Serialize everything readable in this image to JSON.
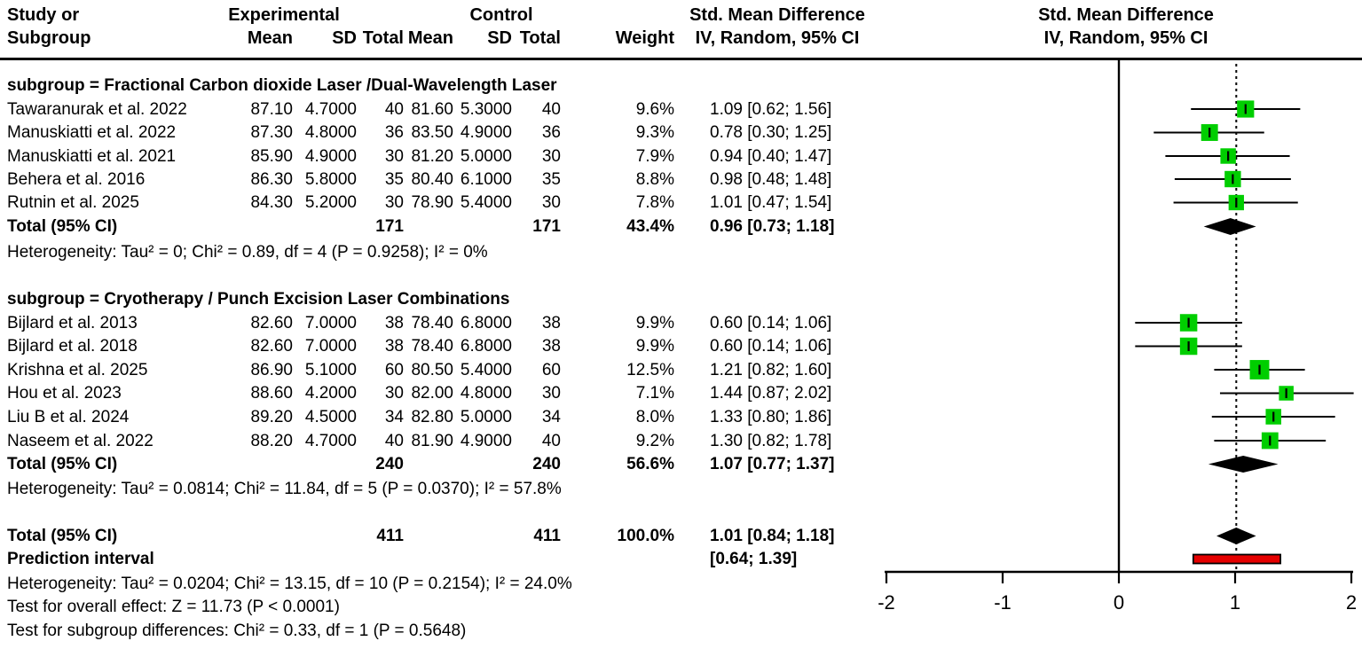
{
  "header": {
    "col_study_line1": "Study or",
    "col_study_line2": "Subgroup",
    "group_experimental": "Experimental",
    "group_control": "Control",
    "col_exp_mean": "Mean",
    "col_exp_sd": "SD",
    "col_exp_total": "Total",
    "col_ctl_mean": "Mean",
    "col_ctl_sd": "SD",
    "col_ctl_total": "Total",
    "col_weight": "Weight",
    "smd_col_line1": "Std. Mean Difference",
    "smd_col_line2": "IV, Random, 95% CI",
    "plot_col_line1": "Std. Mean Difference",
    "plot_col_line2": "IV, Random, 95% CI"
  },
  "table": {
    "rows": [
      {
        "kind": "subgroup",
        "text": "subgroup = Fractional Carbon dioxide Laser /Dual-Wavelength Laser"
      },
      {
        "kind": "study",
        "study": "Tawaranurak et al. 2022",
        "em": "87.10",
        "esd": "4.7000",
        "et": "40",
        "cm": "81.60",
        "csd": "5.3000",
        "ct": "40",
        "w": "9.6%",
        "smd": "1.09 [0.62; 1.56]"
      },
      {
        "kind": "study",
        "study": "Manuskiatti et al. 2022",
        "em": "87.30",
        "esd": "4.8000",
        "et": "36",
        "cm": "83.50",
        "csd": "4.9000",
        "ct": "36",
        "w": "9.3%",
        "smd": "0.78 [0.30; 1.25]"
      },
      {
        "kind": "study",
        "study": "Manuskiatti et al. 2021",
        "em": "85.90",
        "esd": "4.9000",
        "et": "30",
        "cm": "81.20",
        "csd": "5.0000",
        "ct": "30",
        "w": "7.9%",
        "smd": "0.94 [0.40; 1.47]"
      },
      {
        "kind": "study",
        "study": "Behera et al. 2016",
        "em": "86.30",
        "esd": "5.8000",
        "et": "35",
        "cm": "80.40",
        "csd": "6.1000",
        "ct": "35",
        "w": "8.8%",
        "smd": "0.98 [0.48; 1.48]"
      },
      {
        "kind": "study",
        "study": "Rutnin et al. 2025",
        "em": "84.30",
        "esd": "5.2000",
        "et": "30",
        "cm": "78.90",
        "csd": "5.4000",
        "ct": "30",
        "w": "7.8%",
        "smd": "1.01 [0.47; 1.54]"
      },
      {
        "kind": "total",
        "study": "Total (95% CI)",
        "et": "171",
        "ct": "171",
        "w": "43.4%",
        "smd": "0.96 [0.73; 1.18]"
      },
      {
        "kind": "note",
        "text": "Heterogeneity: Tau² = 0; Chi² = 0.89, df = 4 (P = 0.9258); I² = 0%"
      },
      {
        "kind": "subgroup",
        "text": "subgroup = Cryotherapy / Punch Excision Laser Combinations"
      },
      {
        "kind": "study",
        "study": "Bijlard et al. 2013",
        "em": "82.60",
        "esd": "7.0000",
        "et": "38",
        "cm": "78.40",
        "csd": "6.8000",
        "ct": "38",
        "w": "9.9%",
        "smd": "0.60 [0.14; 1.06]"
      },
      {
        "kind": "study",
        "study": "Bijlard et al. 2018",
        "em": "82.60",
        "esd": "7.0000",
        "et": "38",
        "cm": "78.40",
        "csd": "6.8000",
        "ct": "38",
        "w": "9.9%",
        "smd": "0.60 [0.14; 1.06]"
      },
      {
        "kind": "study",
        "study": "Krishna et al. 2025",
        "em": "86.90",
        "esd": "5.1000",
        "et": "60",
        "cm": "80.50",
        "csd": "5.4000",
        "ct": "60",
        "w": "12.5%",
        "smd": "1.21 [0.82; 1.60]"
      },
      {
        "kind": "study",
        "study": "Hou et al. 2023",
        "em": "88.60",
        "esd": "4.2000",
        "et": "30",
        "cm": "82.00",
        "csd": "4.8000",
        "ct": "30",
        "w": "7.1%",
        "smd": "1.44 [0.87; 2.02]"
      },
      {
        "kind": "study",
        "study": "Liu B et al. 2024",
        "em": "89.20",
        "esd": "4.5000",
        "et": "34",
        "cm": "82.80",
        "csd": "5.0000",
        "ct": "34",
        "w": "8.0%",
        "smd": "1.33 [0.80; 1.86]"
      },
      {
        "kind": "study",
        "study": "Naseem et al. 2022",
        "em": "88.20",
        "esd": "4.7000",
        "et": "40",
        "cm": "81.90",
        "csd": "4.9000",
        "ct": "40",
        "w": "9.2%",
        "smd": "1.30 [0.82; 1.78]"
      },
      {
        "kind": "total",
        "study": "Total (95% CI)",
        "et": "240",
        "ct": "240",
        "w": "56.6%",
        "smd": "1.07 [0.77; 1.37]"
      },
      {
        "kind": "note",
        "text": "Heterogeneity: Tau² = 0.0814; Chi² = 11.84, df = 5 (P = 0.0370); I² = 57.8%"
      },
      {
        "kind": "total",
        "study": "Total (95% CI)",
        "et": "411",
        "ct": "411",
        "w": "100.0%",
        "smd": "1.01 [0.84; 1.18]"
      },
      {
        "kind": "total",
        "study": "Prediction interval",
        "et": "",
        "ct": "",
        "w": "",
        "smd": "[0.64; 1.39]"
      },
      {
        "kind": "note",
        "text": "Heterogeneity: Tau² = 0.0204; Chi² = 13.15, df = 10 (P = 0.2154); I² = 24.0%"
      },
      {
        "kind": "note",
        "text": "Test for overall effect: Z = 11.73 (P < 0.0001)"
      },
      {
        "kind": "note",
        "text": "Test for subgroup differences: Chi² = 0.33, df = 1 (P = 0.5648)"
      }
    ]
  },
  "chart_data": {
    "type": "forest",
    "effect_measure": "Std. Mean Difference",
    "model": "IV, Random, 95% CI",
    "xlim": [
      -2,
      2
    ],
    "x_ticks": [
      -2,
      -1,
      0,
      1,
      2
    ],
    "null_line": 0,
    "groups": [
      {
        "label": "subgroup = Fractional Carbon dioxide Laser /Dual-Wavelength Laser",
        "studies": [
          {
            "study": "Tawaranurak et al. 2022",
            "smd": 1.09,
            "ci": [
              0.62,
              1.56
            ],
            "weight_pct": 9.6
          },
          {
            "study": "Manuskiatti et al. 2022",
            "smd": 0.78,
            "ci": [
              0.3,
              1.25
            ],
            "weight_pct": 9.3
          },
          {
            "study": "Manuskiatti et al. 2021",
            "smd": 0.94,
            "ci": [
              0.4,
              1.47
            ],
            "weight_pct": 7.9
          },
          {
            "study": "Behera et al. 2016",
            "smd": 0.98,
            "ci": [
              0.48,
              1.48
            ],
            "weight_pct": 8.8
          },
          {
            "study": "Rutnin et al. 2025",
            "smd": 1.01,
            "ci": [
              0.47,
              1.54
            ],
            "weight_pct": 7.8
          }
        ],
        "subtotal": {
          "n": 171,
          "smd": 0.96,
          "ci": [
            0.73,
            1.18
          ],
          "weight_pct": 43.4
        },
        "heterogeneity": "Tau² = 0; Chi² = 0.89, df = 4 (P = 0.9258); I² = 0%"
      },
      {
        "label": "subgroup = Cryotherapy / Punch Excision Laser Combinations",
        "studies": [
          {
            "study": "Bijlard et al. 2013",
            "smd": 0.6,
            "ci": [
              0.14,
              1.06
            ],
            "weight_pct": 9.9
          },
          {
            "study": "Bijlard et al. 2018",
            "smd": 0.6,
            "ci": [
              0.14,
              1.06
            ],
            "weight_pct": 9.9
          },
          {
            "study": "Krishna et al. 2025",
            "smd": 1.21,
            "ci": [
              0.82,
              1.6
            ],
            "weight_pct": 12.5
          },
          {
            "study": "Hou et al. 2023",
            "smd": 1.44,
            "ci": [
              0.87,
              2.02
            ],
            "weight_pct": 7.1
          },
          {
            "study": "Liu B et al. 2024",
            "smd": 1.33,
            "ci": [
              0.8,
              1.86
            ],
            "weight_pct": 8.0
          },
          {
            "study": "Naseem et al. 2022",
            "smd": 1.3,
            "ci": [
              0.82,
              1.78
            ],
            "weight_pct": 9.2
          }
        ],
        "subtotal": {
          "n": 240,
          "smd": 1.07,
          "ci": [
            0.77,
            1.37
          ],
          "weight_pct": 56.6
        },
        "heterogeneity": "Tau² = 0.0814; Chi² = 11.84, df = 5 (P = 0.0370); I² = 57.8%"
      }
    ],
    "overall": {
      "n": 411,
      "smd": 1.01,
      "ci": [
        0.84,
        1.18
      ],
      "weight_pct": 100.0
    },
    "prediction_interval": [
      0.64,
      1.39
    ],
    "overall_heterogeneity": "Tau² = 0.0204; Chi² = 13.15, df = 10 (P = 0.2154); I² = 24.0%",
    "test_overall_effect": "Z = 11.73 (P < 0.0001)",
    "test_subgroup_differences": "Chi² = 0.33, df = 1 (P = 0.5648)",
    "colors": {
      "square": "#00CE00",
      "ci_line": "#000000",
      "diamond": "#000000",
      "prediction_fill": "#E50000",
      "prediction_border": "#000000"
    }
  }
}
